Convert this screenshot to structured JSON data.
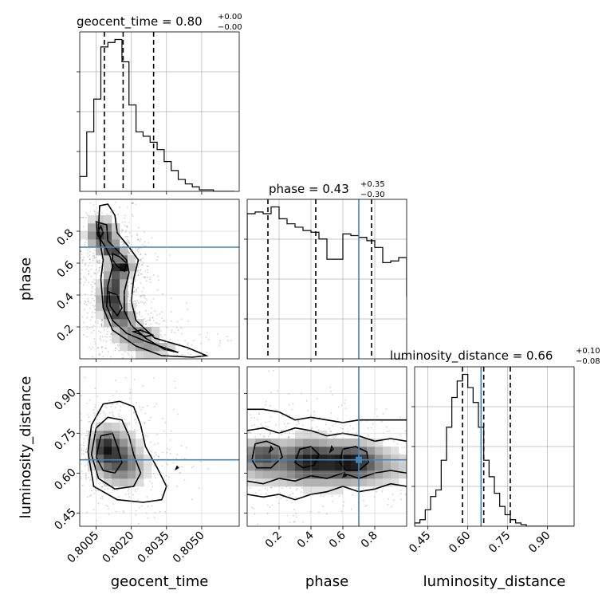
{
  "chart_data": {
    "type": "corner",
    "parameters": [
      "geocent_time",
      "phase",
      "luminosity_distance"
    ],
    "truth_color": "#4682b4",
    "truths": {
      "geocent_time": null,
      "phase": 0.7,
      "luminosity_distance": 0.65
    },
    "titles": [
      {
        "param": "geocent_time",
        "prefix": "geocent_time = ",
        "value": "0.80",
        "plus": "+0.00",
        "minus": "−0.00"
      },
      {
        "param": "phase",
        "prefix": "phase = ",
        "value": "0.43",
        "plus": "+0.35",
        "minus": "−0.30"
      },
      {
        "param": "luminosity_distance",
        "prefix": "luminosity_distance = ",
        "value": "0.66",
        "plus": "+0.10",
        "minus": "−0.08"
      }
    ],
    "axes": {
      "geocent_time": {
        "range": [
          0.7998,
          0.8066
        ],
        "ticks": [
          0.8005,
          0.802,
          0.8035,
          0.805
        ],
        "tick_labels": [
          "0.8005",
          "0.8020",
          "0.8035",
          "0.8050"
        ],
        "label": "geocent_time"
      },
      "phase": {
        "range": [
          0.0,
          1.0
        ],
        "ticks": [
          0.2,
          0.4,
          0.6,
          0.8
        ],
        "tick_labels": [
          "0.2",
          "0.4",
          "0.6",
          "0.8"
        ],
        "label": "phase"
      },
      "luminosity_distance": {
        "range": [
          0.4,
          1.0
        ],
        "ticks": [
          0.45,
          0.6,
          0.75,
          0.9
        ],
        "tick_labels": [
          "0.45",
          "0.60",
          "0.75",
          "0.90"
        ],
        "label": "luminosity_distance"
      }
    },
    "histograms": [
      {
        "param": "geocent_time",
        "bin_start": 0.7998,
        "bin_width": 0.0003,
        "counts": [
          10,
          40,
          62,
          97,
          100,
          102,
          87,
          58,
          40,
          37,
          33,
          28,
          20,
          14,
          8,
          5,
          3,
          1,
          1,
          0,
          0,
          0
        ],
        "quantiles": [
          0.80085,
          0.80165,
          0.80295
        ]
      },
      {
        "param": "phase",
        "bin_start": 0.0,
        "bin_width": 0.05,
        "counts": [
          86,
          87,
          86,
          90,
          83,
          80,
          78,
          76,
          75,
          71,
          59,
          59,
          74,
          73,
          72,
          70,
          66,
          57,
          58,
          60,
          37
        ],
        "quantiles": [
          0.13,
          0.43,
          0.78
        ]
      },
      {
        "param": "luminosity_distance",
        "bin_start": 0.4,
        "bin_width": 0.02,
        "counts": [
          2,
          4,
          10,
          18,
          22,
          40,
          60,
          78,
          88,
          92,
          84,
          75,
          60,
          40,
          30,
          20,
          12,
          7,
          4,
          2,
          1,
          0,
          0,
          0,
          0,
          0,
          0,
          0,
          0,
          0
        ],
        "quantiles": [
          0.58,
          0.66,
          0.76
        ]
      }
    ],
    "density_2d": [
      {
        "x": "geocent_time",
        "y": "phase",
        "blobs": [
          {
            "x": 0.80075,
            "y": 0.78,
            "sx": 0.0004,
            "sy": 0.06,
            "w": 0.8
          },
          {
            "x": 0.8012,
            "y": 0.68,
            "sx": 0.0003,
            "sy": 0.03,
            "w": 0.7
          },
          {
            "x": 0.80155,
            "y": 0.58,
            "sx": 0.0003,
            "sy": 0.04,
            "w": 1.0
          },
          {
            "x": 0.80125,
            "y": 0.47,
            "sx": 0.0003,
            "sy": 0.05,
            "w": 0.7
          },
          {
            "x": 0.80115,
            "y": 0.36,
            "sx": 0.00035,
            "sy": 0.05,
            "w": 0.8
          },
          {
            "x": 0.80155,
            "y": 0.26,
            "sx": 0.0004,
            "sy": 0.04,
            "w": 0.7
          },
          {
            "x": 0.8022,
            "y": 0.15,
            "sx": 0.0006,
            "sy": 0.04,
            "w": 0.55
          },
          {
            "x": 0.80285,
            "y": 0.06,
            "sx": 0.0007,
            "sy": 0.03,
            "w": 0.4
          }
        ],
        "contours": [
          [
            [
              0.80065,
              0.96
            ],
            [
              0.8006,
              0.82
            ],
            [
              0.8007,
              0.7
            ],
            [
              0.8008,
              0.62
            ],
            [
              0.8007,
              0.5
            ],
            [
              0.8008,
              0.32
            ],
            [
              0.8012,
              0.18
            ],
            [
              0.8022,
              0.08
            ],
            [
              0.8033,
              0.02
            ],
            [
              0.8046,
              0.01
            ],
            [
              0.8052,
              0.02
            ],
            [
              0.8044,
              0.07
            ],
            [
              0.803,
              0.13
            ],
            [
              0.8022,
              0.24
            ],
            [
              0.802,
              0.36
            ],
            [
              0.8021,
              0.5
            ],
            [
              0.8023,
              0.62
            ],
            [
              0.8019,
              0.7
            ],
            [
              0.8014,
              0.79
            ],
            [
              0.8013,
              0.9
            ],
            [
              0.801,
              0.97
            ]
          ],
          [
            [
              0.8005,
              0.86
            ],
            [
              0.80055,
              0.78
            ],
            [
              0.8009,
              0.7
            ],
            [
              0.8011,
              0.64
            ],
            [
              0.8012,
              0.58
            ],
            [
              0.801,
              0.46
            ],
            [
              0.80095,
              0.33
            ],
            [
              0.8012,
              0.24
            ],
            [
              0.8018,
              0.16
            ],
            [
              0.8026,
              0.11
            ],
            [
              0.8036,
              0.06
            ],
            [
              0.804,
              0.04
            ],
            [
              0.8034,
              0.06
            ],
            [
              0.8026,
              0.13
            ],
            [
              0.802,
              0.21
            ],
            [
              0.8017,
              0.3
            ],
            [
              0.8017,
              0.42
            ],
            [
              0.8019,
              0.54
            ],
            [
              0.8018,
              0.62
            ],
            [
              0.8014,
              0.68
            ],
            [
              0.801,
              0.74
            ],
            [
              0.80095,
              0.84
            ]
          ],
          [
            [
              0.80058,
              0.8
            ],
            [
              0.80068,
              0.76
            ],
            [
              0.8008,
              0.79
            ],
            [
              0.8007,
              0.83
            ]
          ],
          [
            [
              0.8012,
              0.66
            ],
            [
              0.8015,
              0.64
            ],
            [
              0.8018,
              0.6
            ],
            [
              0.8017,
              0.55
            ],
            [
              0.8014,
              0.58
            ],
            [
              0.8012,
              0.62
            ]
          ],
          [
            [
              0.80105,
              0.42
            ],
            [
              0.8011,
              0.33
            ],
            [
              0.8014,
              0.27
            ],
            [
              0.8016,
              0.32
            ],
            [
              0.8014,
              0.4
            ]
          ],
          [
            [
              0.8021,
              0.17
            ],
            [
              0.8026,
              0.14
            ],
            [
              0.8029,
              0.15
            ],
            [
              0.8024,
              0.18
            ]
          ]
        ]
      },
      {
        "x": "geocent_time",
        "y": "luminosity_distance",
        "blobs": [
          {
            "x": 0.8012,
            "y": 0.68,
            "sx": 0.0006,
            "sy": 0.06,
            "w": 1.0
          },
          {
            "x": 0.8008,
            "y": 0.7,
            "sx": 0.0003,
            "sy": 0.04,
            "w": 0.7
          },
          {
            "x": 0.8018,
            "y": 0.62,
            "sx": 0.0006,
            "sy": 0.05,
            "w": 0.6
          }
        ],
        "contours": [
          [
            [
              0.80015,
              0.68
            ],
            [
              0.8003,
              0.78
            ],
            [
              0.8008,
              0.86
            ],
            [
              0.8015,
              0.87
            ],
            [
              0.8021,
              0.85
            ],
            [
              0.8024,
              0.78
            ],
            [
              0.8026,
              0.7
            ],
            [
              0.8031,
              0.62
            ],
            [
              0.8035,
              0.55
            ],
            [
              0.8033,
              0.5
            ],
            [
              0.8025,
              0.49
            ],
            [
              0.8014,
              0.5
            ],
            [
              0.8004,
              0.55
            ]
          ],
          [
            [
              0.8003,
              0.67
            ],
            [
              0.8005,
              0.77
            ],
            [
              0.801,
              0.81
            ],
            [
              0.8016,
              0.8
            ],
            [
              0.8019,
              0.74
            ],
            [
              0.8021,
              0.67
            ],
            [
              0.8024,
              0.6
            ],
            [
              0.8021,
              0.55
            ],
            [
              0.8013,
              0.54
            ],
            [
              0.8006,
              0.58
            ]
          ],
          [
            [
              0.8005,
              0.66
            ],
            [
              0.8007,
              0.74
            ],
            [
              0.8012,
              0.75
            ],
            [
              0.8014,
              0.7
            ],
            [
              0.8016,
              0.64
            ],
            [
              0.8013,
              0.6
            ],
            [
              0.8008,
              0.61
            ]
          ],
          [
            [
              0.8039,
              0.615
            ],
            [
              0.80395,
              0.625
            ],
            [
              0.804,
              0.62
            ]
          ]
        ]
      },
      {
        "x": "phase",
        "y": "luminosity_distance",
        "blobs": [
          {
            "x": 0.1,
            "y": 0.67,
            "sx": 0.08,
            "sy": 0.04,
            "w": 0.9
          },
          {
            "x": 0.38,
            "y": 0.66,
            "sx": 0.1,
            "sy": 0.05,
            "w": 0.9
          },
          {
            "x": 0.65,
            "y": 0.65,
            "sx": 0.12,
            "sy": 0.045,
            "w": 1.0
          },
          {
            "x": 0.5,
            "y": 0.62,
            "sx": 0.4,
            "sy": 0.05,
            "w": 0.6
          }
        ],
        "contours": [
          [
            [
              0.0,
              0.84
            ],
            [
              0.1,
              0.84
            ],
            [
              0.2,
              0.83
            ],
            [
              0.3,
              0.8
            ],
            [
              0.4,
              0.81
            ],
            [
              0.5,
              0.8
            ],
            [
              0.6,
              0.79
            ],
            [
              0.7,
              0.8
            ],
            [
              0.8,
              0.8
            ],
            [
              0.9,
              0.8
            ],
            [
              1.0,
              0.8
            ]
          ],
          [
            [
              0.0,
              0.52
            ],
            [
              0.1,
              0.51
            ],
            [
              0.2,
              0.52
            ],
            [
              0.3,
              0.5
            ],
            [
              0.4,
              0.52
            ],
            [
              0.5,
              0.53
            ],
            [
              0.6,
              0.55
            ],
            [
              0.7,
              0.53
            ],
            [
              0.8,
              0.54
            ],
            [
              0.9,
              0.56
            ],
            [
              1.0,
              0.55
            ]
          ],
          [
            [
              0.0,
              0.76
            ],
            [
              0.1,
              0.77
            ],
            [
              0.2,
              0.75
            ],
            [
              0.3,
              0.77
            ],
            [
              0.4,
              0.76
            ],
            [
              0.5,
              0.74
            ],
            [
              0.6,
              0.75
            ],
            [
              0.7,
              0.74
            ],
            [
              0.8,
              0.72
            ],
            [
              0.9,
              0.73
            ],
            [
              1.0,
              0.72
            ]
          ],
          [
            [
              0.0,
              0.57
            ],
            [
              0.1,
              0.56
            ],
            [
              0.2,
              0.58
            ],
            [
              0.3,
              0.57
            ],
            [
              0.4,
              0.59
            ],
            [
              0.5,
              0.58
            ],
            [
              0.6,
              0.6
            ],
            [
              0.7,
              0.58
            ],
            [
              0.8,
              0.6
            ],
            [
              0.9,
              0.61
            ],
            [
              1.0,
              0.6
            ]
          ],
          [
            [
              0.03,
              0.65
            ],
            [
              0.05,
              0.71
            ],
            [
              0.12,
              0.72
            ],
            [
              0.2,
              0.7
            ],
            [
              0.22,
              0.66
            ],
            [
              0.15,
              0.62
            ],
            [
              0.06,
              0.62
            ]
          ],
          [
            [
              0.3,
              0.64
            ],
            [
              0.33,
              0.69
            ],
            [
              0.4,
              0.7
            ],
            [
              0.45,
              0.67
            ],
            [
              0.42,
              0.63
            ],
            [
              0.35,
              0.62
            ]
          ],
          [
            [
              0.58,
              0.64
            ],
            [
              0.6,
              0.69
            ],
            [
              0.68,
              0.7
            ],
            [
              0.75,
              0.68
            ],
            [
              0.76,
              0.64
            ],
            [
              0.7,
              0.61
            ],
            [
              0.62,
              0.61
            ]
          ],
          [
            [
              0.14,
              0.68
            ],
            [
              0.15,
              0.7
            ],
            [
              0.16,
              0.69
            ]
          ],
          [
            [
              0.52,
              0.68
            ],
            [
              0.53,
              0.7
            ],
            [
              0.54,
              0.69
            ]
          ],
          [
            [
              0.6,
              0.585
            ],
            [
              0.61,
              0.6
            ],
            [
              0.62,
              0.59
            ]
          ]
        ]
      }
    ]
  }
}
